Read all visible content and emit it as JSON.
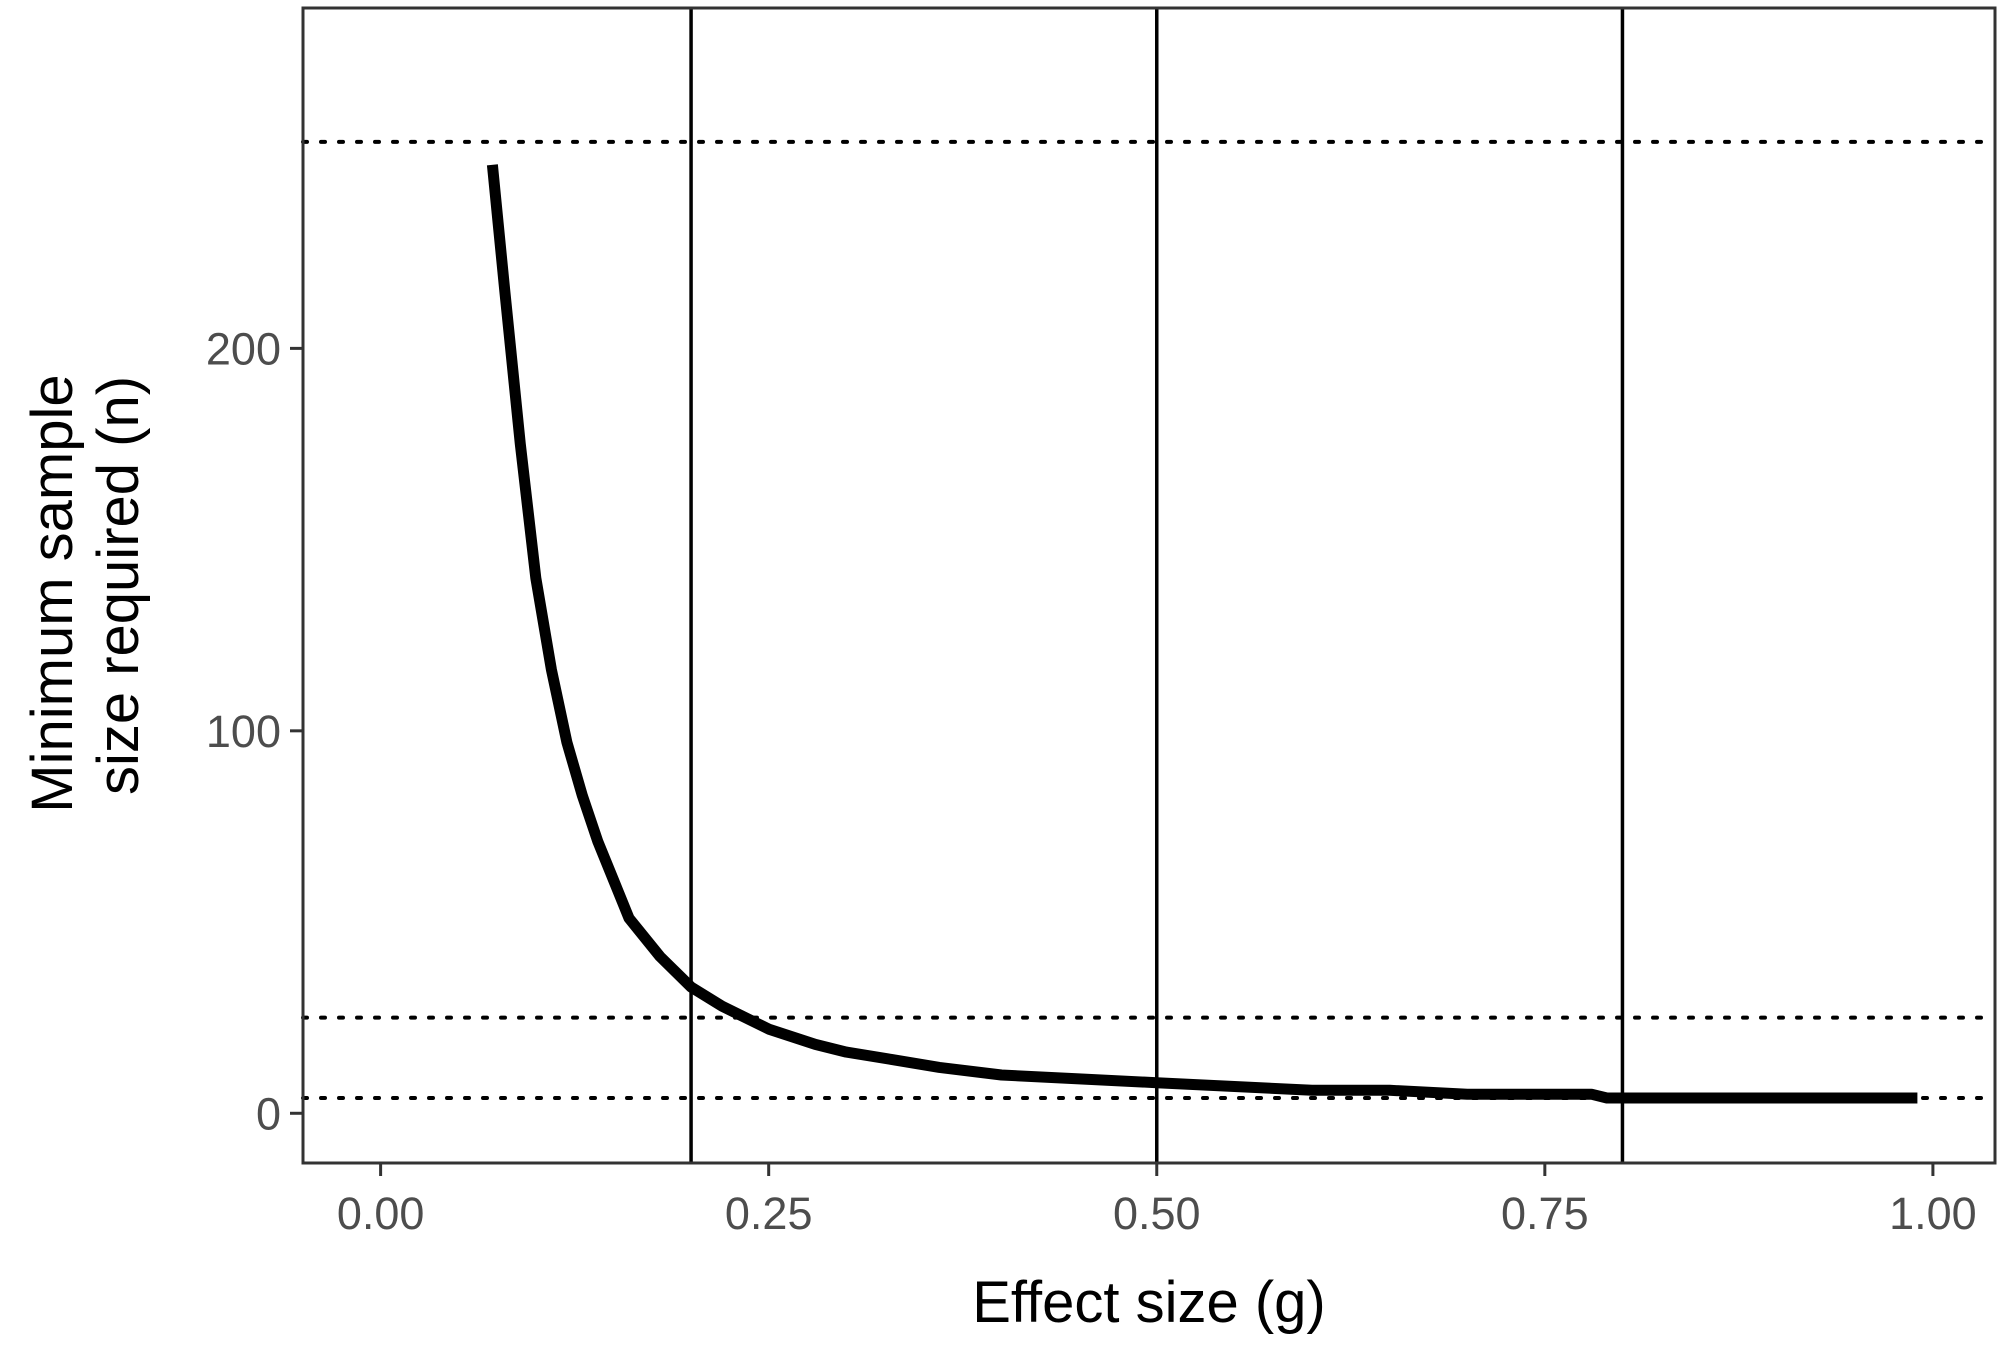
{
  "chart_data": {
    "type": "line",
    "title": "",
    "xlabel": "Effect size (g)",
    "ylabel_line1": "Minimum sample",
    "ylabel_line2": "size required (n)",
    "xlim": [
      -0.05,
      1.04
    ],
    "ylim": [
      -13,
      289
    ],
    "x_ticks": [
      0.0,
      0.25,
      0.5,
      0.75,
      1.0
    ],
    "x_tick_labels": [
      "0.00",
      "0.25",
      "0.50",
      "0.75",
      "1.00"
    ],
    "y_ticks": [
      0,
      100,
      200
    ],
    "y_tick_labels": [
      "0",
      "100",
      "200"
    ],
    "grid": false,
    "vlines": [
      0.2,
      0.5,
      0.8
    ],
    "hlines_dotted": [
      4,
      25,
      254
    ],
    "series": [
      {
        "color": "#000000",
        "x": [
          0.072,
          0.08,
          0.09,
          0.1,
          0.11,
          0.12,
          0.13,
          0.14,
          0.15,
          0.16,
          0.18,
          0.2,
          0.22,
          0.25,
          0.28,
          0.3,
          0.33,
          0.36,
          0.4,
          0.45,
          0.5,
          0.55,
          0.6,
          0.65,
          0.7,
          0.75,
          0.78,
          0.79,
          0.85,
          0.9,
          0.95,
          0.99
        ],
        "y": [
          248,
          215,
          175,
          140,
          116,
          97,
          83,
          71,
          61,
          51,
          41,
          33,
          28,
          22,
          18,
          16,
          14,
          12,
          10,
          9,
          8,
          7,
          6,
          6,
          5,
          5,
          5,
          4,
          4,
          4,
          4,
          4
        ]
      }
    ]
  }
}
